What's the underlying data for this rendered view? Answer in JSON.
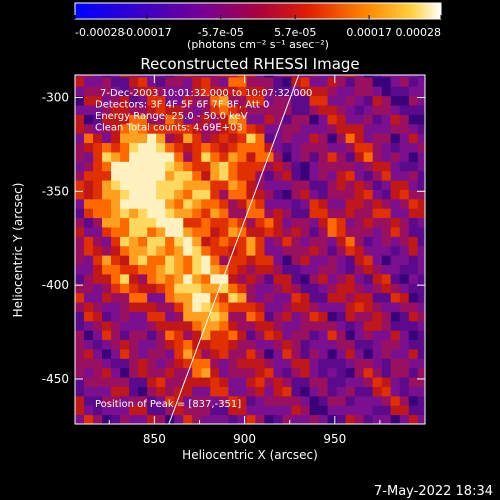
{
  "colorbar": {
    "ticks": [
      "-0.00028",
      "-0.00017",
      "-5.7e-05",
      "5.7e-05",
      "0.00017",
      "0.00028"
    ],
    "units_label": "(photons cm⁻² s⁻¹ asec⁻²)",
    "range": [
      -0.00028,
      0.00028
    ]
  },
  "chart_data": {
    "type": "heatmap",
    "title": "Reconstructed RHESSI Image",
    "xlabel": "Heliocentric X (arcsec)",
    "ylabel": "Heliocentric Y (arcsec)",
    "xlim": [
      806,
      1000
    ],
    "ylim": [
      -474,
      -288
    ],
    "xticks": [
      850,
      900,
      950
    ],
    "yticks": [
      -300,
      -350,
      -400,
      -450
    ],
    "limb_line": [
      [
        858,
        -474
      ],
      [
        930,
        -288
      ]
    ],
    "peak": [
      837,
      -351
    ],
    "annotations": [
      "7-Dec-2003 10:01:32.000 to 10:07:32.000",
      "Detectors: 3F 4F 5F 6F 7F 8F, Att 0",
      "Energy Range: 25.0 - 50.0 keV",
      "Clean      Total counts: 4.69E+03"
    ],
    "peak_label": "Position of Peak = [837,-351]",
    "grid": false
  },
  "footer": {
    "timestamp": "7-May-2022 18:34"
  }
}
